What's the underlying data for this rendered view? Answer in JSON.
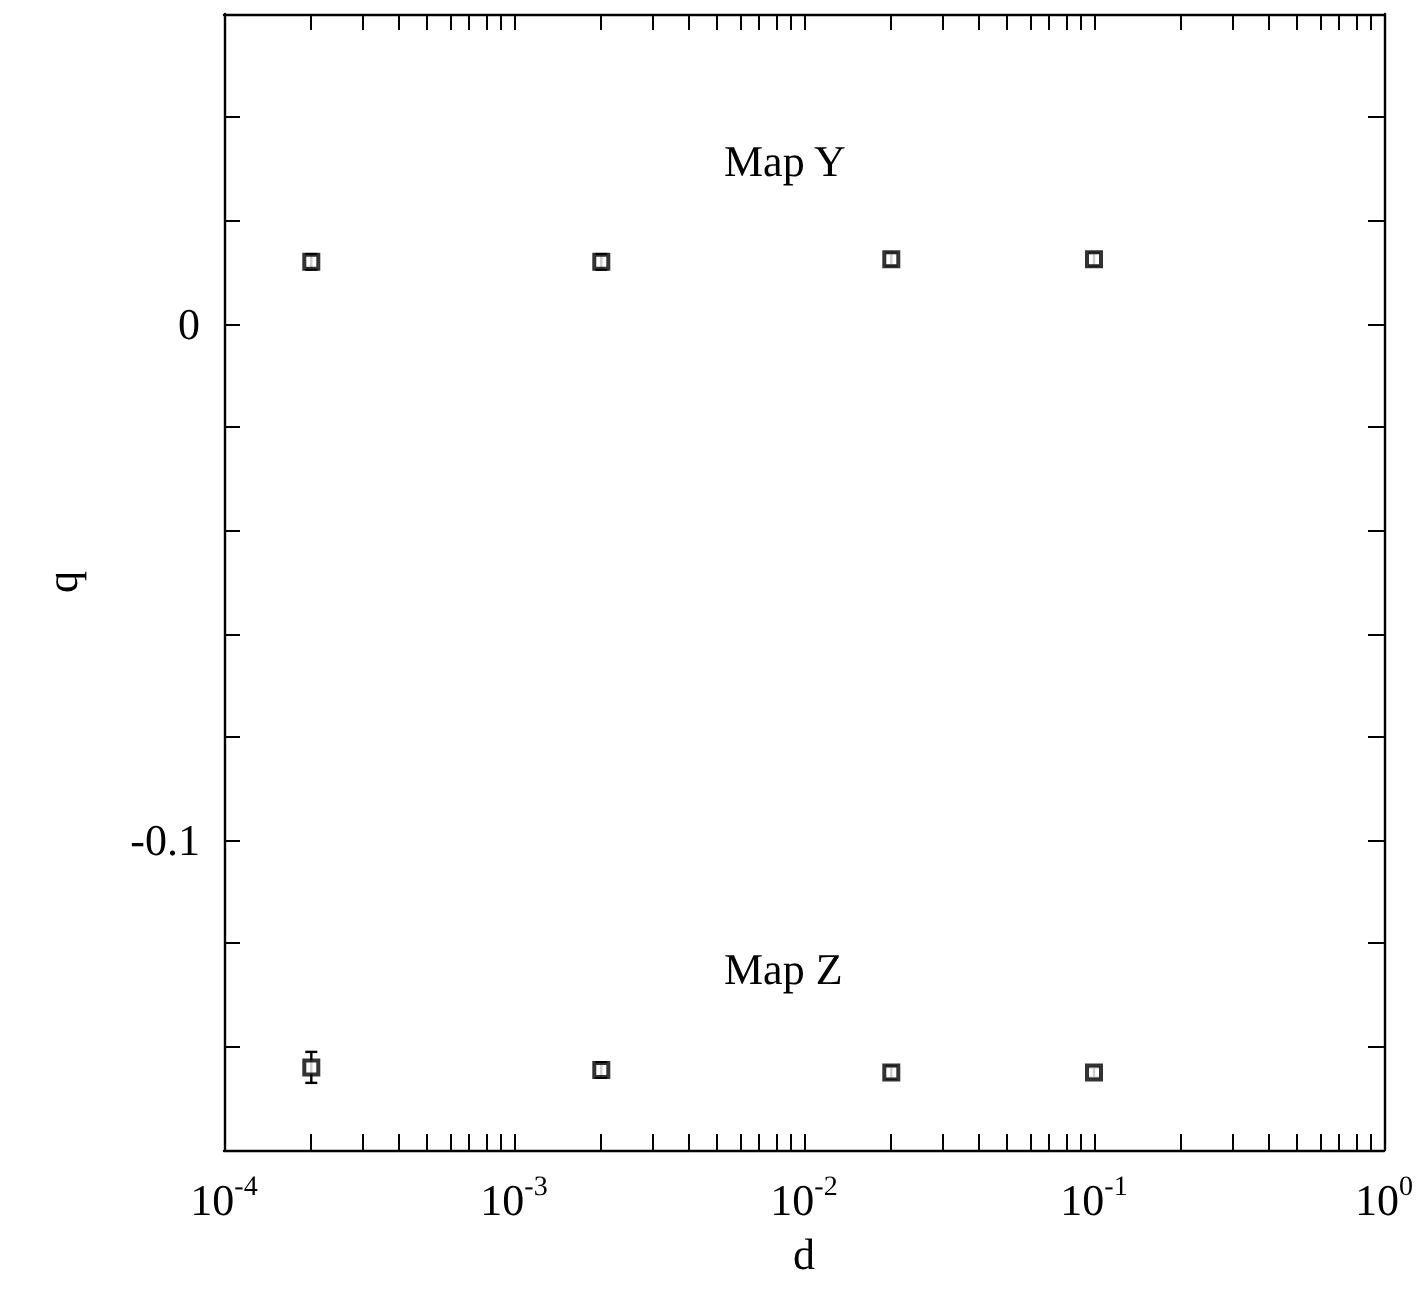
{
  "chart_data": {
    "type": "scatter",
    "xlabel": "d",
    "ylabel": "q",
    "log": "x",
    "marker": "square",
    "grid": false,
    "legend": false,
    "xlim": [
      0.0001,
      1
    ],
    "xticks": [
      {
        "value": 0.0001,
        "label": "10$^{-4}$"
      },
      {
        "value": 0.0002,
        "label": null
      },
      {
        "value": 0.0003,
        "label": null
      },
      {
        "value": 0.0004,
        "label": null
      },
      {
        "value": 0.0005,
        "label": null
      },
      {
        "value": 0.0006,
        "label": null
      },
      {
        "value": 0.0007,
        "label": null
      },
      {
        "value": 0.0008,
        "label": null
      },
      {
        "value": 0.0009,
        "label": null
      },
      {
        "value": 0.001,
        "label": "10$^{-3}$"
      },
      {
        "value": 0.002,
        "label": null
      },
      {
        "value": 0.003,
        "label": null
      },
      {
        "value": 0.004,
        "label": null
      },
      {
        "value": 0.005,
        "label": null
      },
      {
        "value": 0.006,
        "label": null
      },
      {
        "value": 0.007,
        "label": null
      },
      {
        "value": 0.008,
        "label": null
      },
      {
        "value": 0.009,
        "label": null
      },
      {
        "value": 0.01,
        "label": "10$^{-2}$"
      },
      {
        "value": 0.02,
        "label": null
      },
      {
        "value": 0.03,
        "label": null
      },
      {
        "value": 0.04,
        "label": null
      },
      {
        "value": 0.05,
        "label": null
      },
      {
        "value": 0.06,
        "label": null
      },
      {
        "value": 0.07,
        "label": null
      },
      {
        "value": 0.08,
        "label": null
      },
      {
        "value": 0.09,
        "label": null
      },
      {
        "value": 0.1,
        "label": "10$^{-1}$"
      },
      {
        "value": 0.2,
        "label": null
      },
      {
        "value": 0.3,
        "label": null
      },
      {
        "value": 0.4,
        "label": null
      },
      {
        "value": 0.5,
        "label": null
      },
      {
        "value": 0.6,
        "label": null
      },
      {
        "value": 0.7,
        "label": null
      },
      {
        "value": 0.8,
        "label": null
      },
      {
        "value": 0.9,
        "label": null
      },
      {
        "value": 1,
        "label": "10$^{0}$"
      }
    ],
    "ylim": [
      -0.16,
      0.06
    ],
    "yticks": [
      {
        "value": -0.16,
        "label": null
      },
      {
        "value": -0.14,
        "label": null
      },
      {
        "value": -0.12,
        "label": null
      },
      -0.1,
      {
        "value": -0.08,
        "label": null
      },
      {
        "value": -0.06,
        "label": null
      },
      {
        "value": -0.04,
        "label": null
      },
      {
        "value": -0.02,
        "label": null
      },
      0,
      {
        "value": 0.02,
        "label": null
      },
      {
        "value": 0.04,
        "label": null
      },
      {
        "value": 0.06,
        "label": null
      }
    ],
    "x": [
      0.0002,
      0.002,
      0.02,
      0.1
    ],
    "series": [
      {
        "name": "Map Y",
        "color": "#000000",
        "values": [
          0.012,
          0.012,
          0.0125,
          0.0125
        ],
        "errors": [
          0.0015,
          0.0015,
          0.0012,
          0.0012
        ]
      },
      {
        "name": "Map Z",
        "color": "#000000",
        "values": [
          -0.144,
          -0.1445,
          -0.145,
          -0.145
        ],
        "errors": [
          0.003,
          0.0015,
          0.0012,
          0.001
        ]
      }
    ]
  }
}
